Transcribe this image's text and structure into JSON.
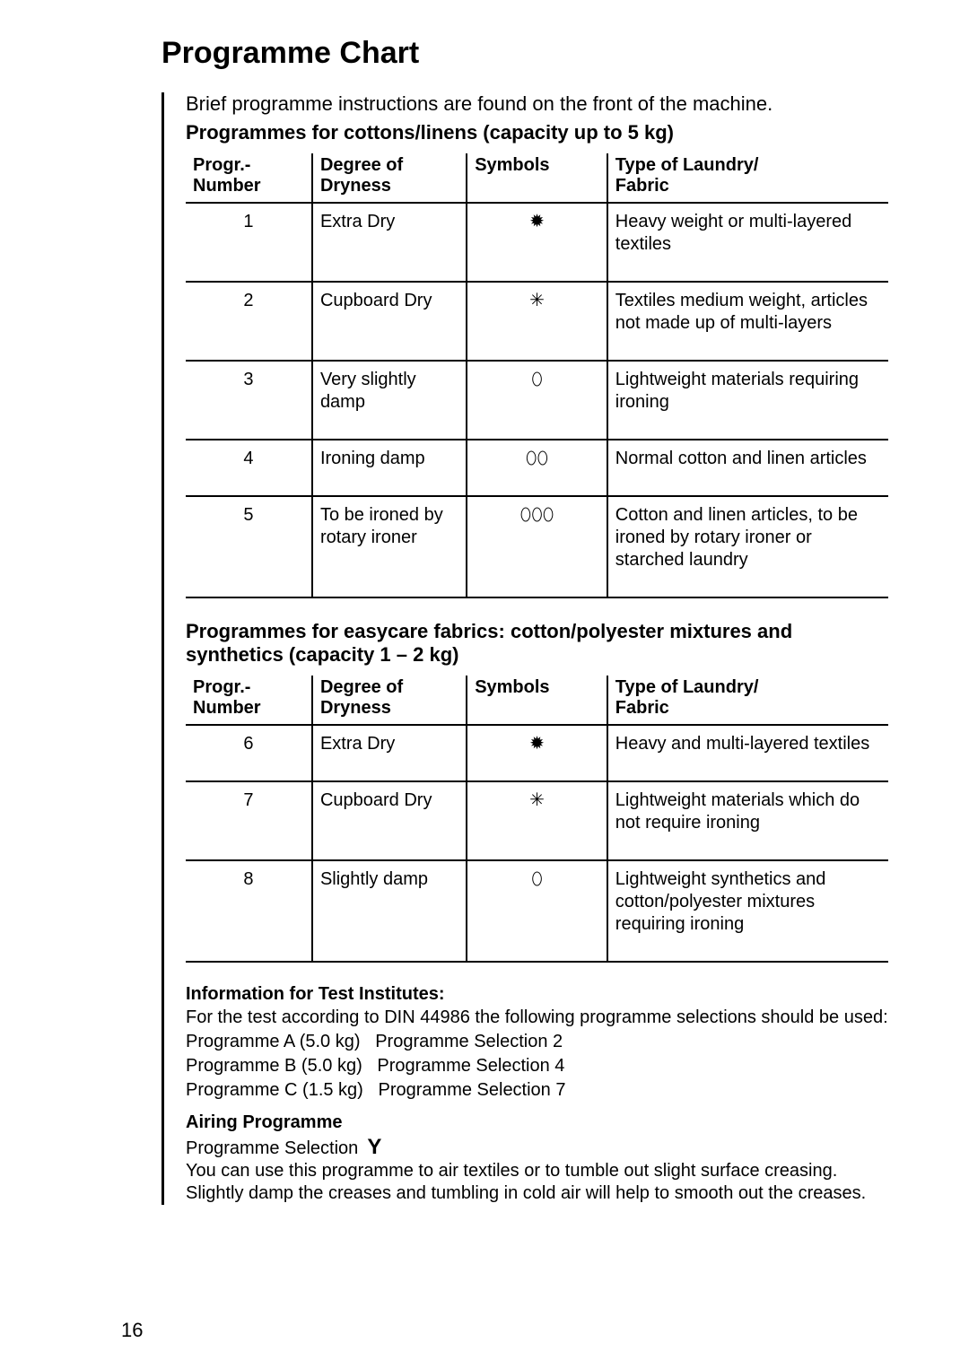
{
  "title": "Programme Chart",
  "intro": "Brief programme instructions are found on the front of the machine.",
  "section1_heading": "Programmes for cottons/linens (capacity up to 5 kg)",
  "section2_heading": "Programmes for easycare fabrics: cotton/polyester mixtures and synthetics (capacity 1 – 2 kg)",
  "headers": {
    "col1a": "Progr.-",
    "col1b": "Number",
    "col2a": "Degree of",
    "col2b": "Dryness",
    "col3": "Symbols",
    "col4a": "Type of Laundry/",
    "col4b": "Fabric"
  },
  "table1": [
    {
      "num": "1",
      "degree": "Extra Dry",
      "symbol": "✹",
      "fabric": "Heavy weight or multi-layered textiles"
    },
    {
      "num": "2",
      "degree": "Cupboard Dry",
      "symbol": "✳",
      "fabric": "Textiles medium weight, articles not made up of multi-layers"
    },
    {
      "num": "3",
      "degree": "Very slightly damp",
      "symbol": "⬯",
      "fabric": "Lightweight materials requiring ironing"
    },
    {
      "num": "4",
      "degree": "Ironing damp",
      "symbol": "⬯⬯",
      "fabric": "Normal cotton and linen articles"
    },
    {
      "num": "5",
      "degree": "To be ironed by rotary ironer",
      "symbol": "⬯⬯⬯",
      "fabric": "Cotton and linen articles, to be ironed by rotary ironer or starched laundry"
    }
  ],
  "table2": [
    {
      "num": "6",
      "degree": "Extra Dry",
      "symbol": "✹",
      "fabric": "Heavy and multi-layered textiles"
    },
    {
      "num": "7",
      "degree": "Cupboard Dry",
      "symbol": "✳",
      "fabric": "Lightweight materials which do not require ironing"
    },
    {
      "num": "8",
      "degree": "Slightly damp",
      "symbol": "⬯",
      "fabric": "Lightweight synthetics and cotton/polyester mixtures requiring ironing"
    }
  ],
  "test_info": {
    "heading": "Information for Test Institutes:",
    "intro": "For the test according to DIN 44986 the following programme selections should be used:",
    "lineA": "Programme A (5.0 kg)   Programme Selection 2",
    "lineB": "Programme B (5.0 kg)   Programme Selection 4",
    "lineC": "Programme C (1.5 kg)   Programme Selection 7"
  },
  "airing": {
    "heading": "Airing Programme",
    "line1": "Programme Selection",
    "symbol": "Y",
    "body": "You can use this programme to air textiles or to tumble out slight surface creasing. Slightly damp the creases and tumbling in cold air will help to smooth out the creases."
  },
  "page_number": "16"
}
